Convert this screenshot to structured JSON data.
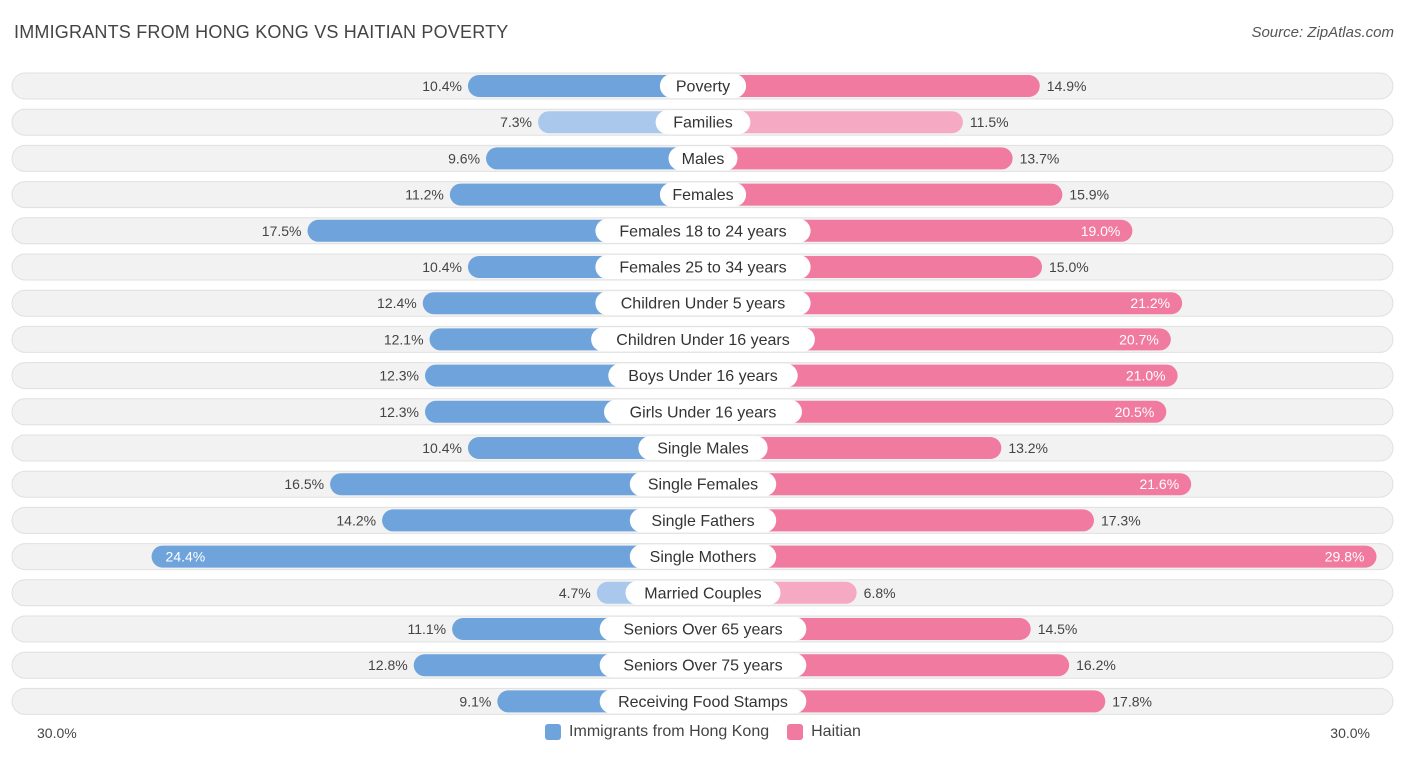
{
  "header": {
    "title": "IMMIGRANTS FROM HONG KONG VS HAITIAN POVERTY",
    "source": "Source: ZipAtlas.com"
  },
  "colors": {
    "left": "#6fa3dc",
    "left_light": "#a9c8ec",
    "right": "#f07aa0",
    "right_light": "#f5a9c2"
  },
  "chart_data": {
    "type": "bar",
    "orientation": "horizontal-diverging",
    "title": "IMMIGRANTS FROM HONG KONG VS HAITIAN POVERTY",
    "categories": [
      "Poverty",
      "Families",
      "Males",
      "Females",
      "Females 18 to 24 years",
      "Females 25 to 34 years",
      "Children Under 5 years",
      "Children Under 16 years",
      "Boys Under 16 years",
      "Girls Under 16 years",
      "Single Males",
      "Single Females",
      "Single Fathers",
      "Single Mothers",
      "Married Couples",
      "Seniors Over 65 years",
      "Seniors Over 75 years",
      "Receiving Food Stamps"
    ],
    "series": [
      {
        "name": "Immigrants from Hong Kong",
        "values": [
          10.4,
          7.3,
          9.6,
          11.2,
          17.5,
          10.4,
          12.4,
          12.1,
          12.3,
          12.3,
          10.4,
          16.5,
          14.2,
          24.4,
          4.7,
          11.1,
          12.8,
          9.1
        ],
        "labels": [
          "10.4%",
          "7.3%",
          "9.6%",
          "11.2%",
          "17.5%",
          "10.4%",
          "12.4%",
          "12.1%",
          "12.3%",
          "12.3%",
          "10.4%",
          "16.5%",
          "14.2%",
          "24.4%",
          "4.7%",
          "11.1%",
          "12.8%",
          "9.1%"
        ]
      },
      {
        "name": "Haitian",
        "values": [
          14.9,
          11.5,
          13.7,
          15.9,
          19.0,
          15.0,
          21.2,
          20.7,
          21.0,
          20.5,
          13.2,
          21.6,
          17.3,
          29.8,
          6.8,
          14.5,
          16.2,
          17.8
        ],
        "labels": [
          "14.9%",
          "11.5%",
          "13.7%",
          "15.9%",
          "19.0%",
          "15.0%",
          "21.2%",
          "20.7%",
          "21.0%",
          "20.5%",
          "13.2%",
          "21.6%",
          "17.3%",
          "29.8%",
          "6.8%",
          "14.5%",
          "16.2%",
          "17.8%"
        ]
      }
    ],
    "xlim": [
      -30,
      30
    ],
    "axis_left_label": "30.0%",
    "axis_right_label": "30.0%",
    "legend_position": "bottom-center"
  }
}
